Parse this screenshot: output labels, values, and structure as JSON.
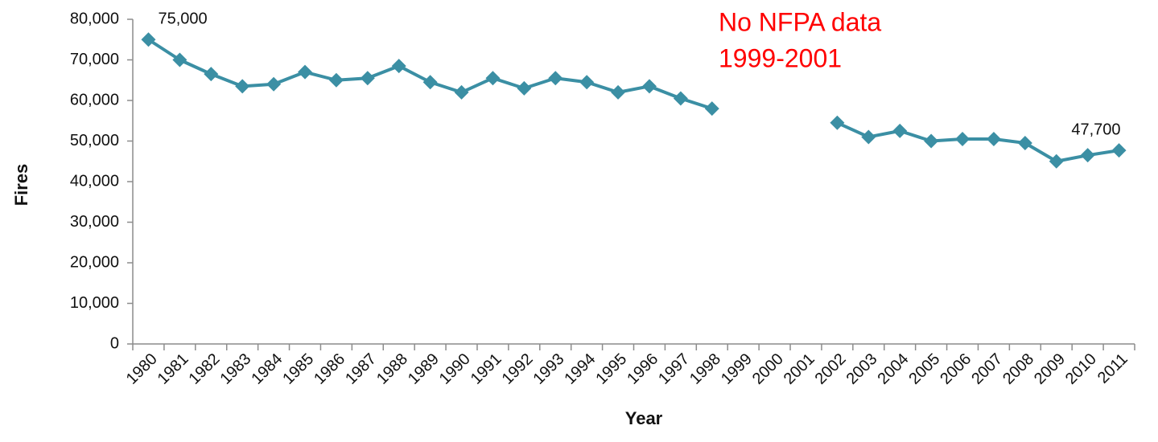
{
  "chart_data": {
    "type": "line",
    "x_label": "Year",
    "y_label": "Fires",
    "categories": [
      "1980",
      "1981",
      "1982",
      "1983",
      "1984",
      "1985",
      "1986",
      "1987",
      "1988",
      "1989",
      "1990",
      "1991",
      "1992",
      "1993",
      "1994",
      "1995",
      "1996",
      "1997",
      "1998",
      "1999",
      "2000",
      "2001",
      "2002",
      "2003",
      "2004",
      "2005",
      "2006",
      "2007",
      "2008",
      "2009",
      "2010",
      "2011"
    ],
    "series": [
      {
        "name": "Fires",
        "color": "#3b8fa4",
        "values": [
          75000,
          70000,
          66500,
          63500,
          64000,
          67000,
          65000,
          65500,
          68500,
          64500,
          62000,
          65500,
          63000,
          65500,
          64500,
          62000,
          63500,
          60500,
          58000,
          null,
          null,
          null,
          54500,
          51000,
          52500,
          50000,
          50500,
          50500,
          49500,
          45000,
          46500,
          47700
        ],
        "value_labels": [
          "75,000",
          null,
          null,
          null,
          null,
          null,
          null,
          null,
          null,
          null,
          null,
          null,
          null,
          null,
          null,
          null,
          null,
          null,
          null,
          null,
          null,
          null,
          null,
          null,
          null,
          null,
          null,
          null,
          null,
          null,
          null,
          "47,700"
        ]
      }
    ],
    "ylim": [
      0,
      80000
    ],
    "yticks": [
      0,
      {
        "value": 10000,
        "label": "10,000"
      },
      {
        "value": 20000,
        "label": "20,000"
      },
      {
        "value": 30000,
        "label": "30,000"
      },
      {
        "value": 40000,
        "label": "40,000"
      },
      {
        "value": 50000,
        "label": "50,000"
      },
      {
        "value": 60000,
        "label": "60,000"
      },
      {
        "value": 70000,
        "label": "70,000"
      },
      {
        "value": 80000,
        "label": "80,000"
      }
    ],
    "grid": false,
    "annotation": {
      "text": [
        "No NFPA data",
        "1999-2001"
      ],
      "color": "#ff0000"
    }
  }
}
